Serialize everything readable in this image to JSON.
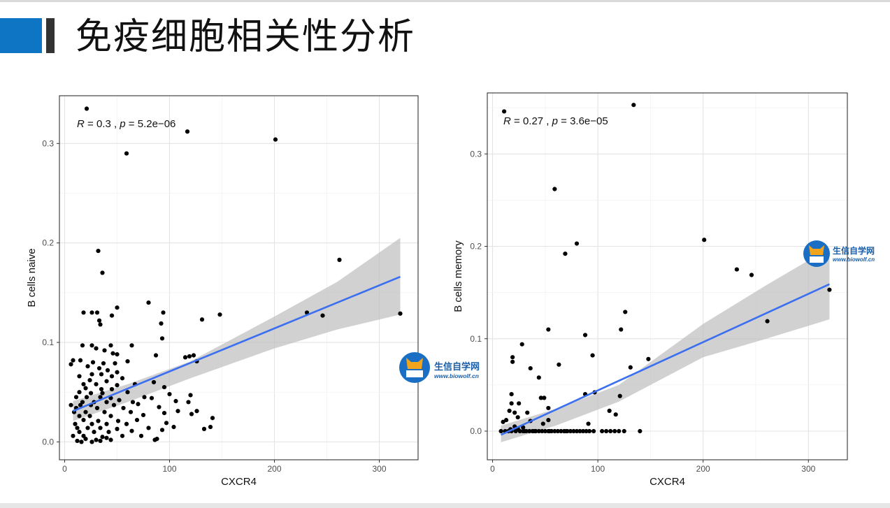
{
  "page": {
    "title": "免疫细胞相关性分析"
  },
  "watermark": {
    "name": "生信自学网",
    "url": "www.biowolf.cn"
  },
  "colors": {
    "accent_blue": "#0e74c4",
    "fit_line": "#3b6ff0",
    "ci_band": "#bdbdbd",
    "points": "#000000"
  },
  "chart_data": [
    {
      "type": "scatter",
      "xlabel": "CXCR4",
      "ylabel": "B cells naive",
      "annotation": {
        "r_label": "R",
        "r_value": " = 0.3 , ",
        "p_label": "p",
        "p_value": " = 5.2e−06"
      },
      "xlim": [
        -5,
        337
      ],
      "ylim": [
        -0.018,
        0.348
      ],
      "x_ticks": [
        0,
        100,
        200,
        300
      ],
      "x_tick_labels": [
        "0",
        "100",
        "200",
        "300"
      ],
      "y_ticks": [
        0.0,
        0.1,
        0.2,
        0.3
      ],
      "y_tick_labels": [
        "0.0",
        "0.1",
        "0.2",
        "0.3"
      ],
      "grid": true,
      "fit": {
        "x": [
          8,
          320
        ],
        "y": [
          0.031,
          0.166
        ]
      },
      "ci": {
        "x": [
          8,
          60,
          120,
          200,
          260,
          320
        ],
        "upper": [
          0.041,
          0.058,
          0.081,
          0.126,
          0.161,
          0.205
        ],
        "lower": [
          0.021,
          0.04,
          0.064,
          0.094,
          0.113,
          0.128
        ]
      },
      "points": [
        [
          21,
          0.335
        ],
        [
          117,
          0.312
        ],
        [
          201,
          0.304
        ],
        [
          59,
          0.29
        ],
        [
          32,
          0.192
        ],
        [
          262,
          0.183
        ],
        [
          36,
          0.17
        ],
        [
          80,
          0.14
        ],
        [
          50,
          0.135
        ],
        [
          18,
          0.13
        ],
        [
          26,
          0.13
        ],
        [
          31,
          0.13
        ],
        [
          94,
          0.13
        ],
        [
          231,
          0.13
        ],
        [
          320,
          0.129
        ],
        [
          148,
          0.128
        ],
        [
          45,
          0.127
        ],
        [
          246,
          0.127
        ],
        [
          33,
          0.122
        ],
        [
          131,
          0.123
        ],
        [
          34,
          0.118
        ],
        [
          92,
          0.119
        ],
        [
          93,
          0.104
        ],
        [
          17,
          0.097
        ],
        [
          26,
          0.097
        ],
        [
          44,
          0.097
        ],
        [
          64,
          0.097
        ],
        [
          30,
          0.094
        ],
        [
          38,
          0.092
        ],
        [
          46,
          0.089
        ],
        [
          50,
          0.088
        ],
        [
          87,
          0.087
        ],
        [
          119,
          0.086
        ],
        [
          123,
          0.087
        ],
        [
          115,
          0.085
        ],
        [
          8,
          0.082
        ],
        [
          15,
          0.082
        ],
        [
          27,
          0.08
        ],
        [
          37,
          0.079
        ],
        [
          48,
          0.079
        ],
        [
          126,
          0.081
        ],
        [
          60,
          0.081
        ],
        [
          6,
          0.078
        ],
        [
          22,
          0.076
        ],
        [
          33,
          0.074
        ],
        [
          41,
          0.072
        ],
        [
          50,
          0.07
        ],
        [
          26,
          0.068
        ],
        [
          35,
          0.068
        ],
        [
          45,
          0.066
        ],
        [
          14,
          0.066
        ],
        [
          55,
          0.064
        ],
        [
          24,
          0.062
        ],
        [
          40,
          0.061
        ],
        [
          85,
          0.06
        ],
        [
          18,
          0.058
        ],
        [
          30,
          0.058
        ],
        [
          50,
          0.057
        ],
        [
          67,
          0.058
        ],
        [
          20,
          0.054
        ],
        [
          35,
          0.053
        ],
        [
          45,
          0.053
        ],
        [
          95,
          0.055
        ],
        [
          14,
          0.05
        ],
        [
          25,
          0.049
        ],
        [
          36,
          0.049
        ],
        [
          60,
          0.05
        ],
        [
          100,
          0.048
        ],
        [
          120,
          0.047
        ],
        [
          11,
          0.045
        ],
        [
          21,
          0.045
        ],
        [
          34,
          0.045
        ],
        [
          44,
          0.044
        ],
        [
          76,
          0.045
        ],
        [
          52,
          0.042
        ],
        [
          83,
          0.044
        ],
        [
          17,
          0.04
        ],
        [
          28,
          0.04
        ],
        [
          40,
          0.04
        ],
        [
          65,
          0.04
        ],
        [
          106,
          0.041
        ],
        [
          6,
          0.037
        ],
        [
          15,
          0.037
        ],
        [
          25,
          0.037
        ],
        [
          47,
          0.037
        ],
        [
          70,
          0.038
        ],
        [
          118,
          0.04
        ],
        [
          11,
          0.034
        ],
        [
          31,
          0.034
        ],
        [
          56,
          0.034
        ],
        [
          90,
          0.035
        ],
        [
          9,
          0.03
        ],
        [
          20,
          0.03
        ],
        [
          38,
          0.03
        ],
        [
          63,
          0.03
        ],
        [
          108,
          0.031
        ],
        [
          126,
          0.031
        ],
        [
          14,
          0.026
        ],
        [
          24,
          0.026
        ],
        [
          44,
          0.026
        ],
        [
          75,
          0.027
        ],
        [
          95,
          0.029
        ],
        [
          121,
          0.028
        ],
        [
          18,
          0.022
        ],
        [
          32,
          0.021
        ],
        [
          51,
          0.021
        ],
        [
          69,
          0.022
        ],
        [
          141,
          0.024
        ],
        [
          10,
          0.018
        ],
        [
          26,
          0.018
        ],
        [
          40,
          0.018
        ],
        [
          59,
          0.018
        ],
        [
          97,
          0.019
        ],
        [
          12,
          0.014
        ],
        [
          22,
          0.014
        ],
        [
          34,
          0.014
        ],
        [
          50,
          0.013
        ],
        [
          80,
          0.014
        ],
        [
          104,
          0.015
        ],
        [
          133,
          0.013
        ],
        [
          139,
          0.015
        ],
        [
          14,
          0.01
        ],
        [
          28,
          0.01
        ],
        [
          42,
          0.01
        ],
        [
          64,
          0.011
        ],
        [
          93,
          0.012
        ],
        [
          8,
          0.006
        ],
        [
          18,
          0.006
        ],
        [
          36,
          0.005
        ],
        [
          55,
          0.006
        ],
        [
          73,
          0.006
        ],
        [
          20,
          0.003
        ],
        [
          30,
          0.002
        ],
        [
          44,
          0.002
        ],
        [
          16,
          0.0
        ],
        [
          26,
          0.0
        ],
        [
          12,
          0.001
        ],
        [
          34,
          0.001
        ],
        [
          86,
          0.002
        ],
        [
          40,
          0.004
        ],
        [
          88,
          0.003
        ]
      ]
    },
    {
      "type": "scatter",
      "xlabel": "CXCR4",
      "ylabel": "B cells memory",
      "annotation": {
        "r_label": "R",
        "r_value": " = 0.27 , ",
        "p_label": "p",
        "p_value": " = 3.6e−05"
      },
      "xlim": [
        -5,
        337
      ],
      "ylim": [
        -0.031,
        0.366
      ],
      "x_ticks": [
        0,
        100,
        200,
        300
      ],
      "x_tick_labels": [
        "0",
        "100",
        "200",
        "300"
      ],
      "y_ticks": [
        0.0,
        0.1,
        0.2,
        0.3
      ],
      "y_tick_labels": [
        "0.0",
        "0.1",
        "0.2",
        "0.3"
      ],
      "grid": true,
      "fit": {
        "x": [
          8,
          320
        ],
        "y": [
          -0.004,
          0.159
        ]
      },
      "ci": {
        "x": [
          8,
          60,
          120,
          200,
          260,
          320
        ],
        "upper": [
          0.006,
          0.024,
          0.05,
          0.116,
          0.158,
          0.198
        ],
        "lower": [
          -0.012,
          0.006,
          0.032,
          0.08,
          0.1,
          0.121
        ]
      },
      "points": [
        [
          11,
          0.346
        ],
        [
          134,
          0.353
        ],
        [
          59,
          0.262
        ],
        [
          80,
          0.203
        ],
        [
          69,
          0.192
        ],
        [
          201,
          0.207
        ],
        [
          232,
          0.175
        ],
        [
          246,
          0.169
        ],
        [
          126,
          0.129
        ],
        [
          122,
          0.11
        ],
        [
          53,
          0.11
        ],
        [
          261,
          0.119
        ],
        [
          320,
          0.153
        ],
        [
          88,
          0.104
        ],
        [
          95,
          0.082
        ],
        [
          28,
          0.094
        ],
        [
          19,
          0.08
        ],
        [
          19,
          0.075
        ],
        [
          63,
          0.072
        ],
        [
          131,
          0.069
        ],
        [
          148,
          0.078
        ],
        [
          36,
          0.068
        ],
        [
          44,
          0.058
        ],
        [
          18,
          0.04
        ],
        [
          46,
          0.036
        ],
        [
          49,
          0.036
        ],
        [
          88,
          0.04
        ],
        [
          97,
          0.042
        ],
        [
          121,
          0.038
        ],
        [
          18,
          0.03
        ],
        [
          25,
          0.03
        ],
        [
          53,
          0.025
        ],
        [
          111,
          0.022
        ],
        [
          16,
          0.022
        ],
        [
          21,
          0.02
        ],
        [
          33,
          0.02
        ],
        [
          117,
          0.018
        ],
        [
          13,
          0.012
        ],
        [
          24,
          0.015
        ],
        [
          53,
          0.012
        ],
        [
          36,
          0.011
        ],
        [
          48,
          0.008
        ],
        [
          91,
          0.008
        ],
        [
          10,
          0.01
        ],
        [
          21,
          0.005
        ],
        [
          29,
          0.004
        ],
        [
          24,
          0.003
        ],
        [
          17,
          0.002
        ],
        [
          8,
          0.0
        ],
        [
          12,
          0.0
        ],
        [
          15,
          0.0
        ],
        [
          18,
          0.0
        ],
        [
          22,
          0.0
        ],
        [
          26,
          0.0
        ],
        [
          29,
          0.0
        ],
        [
          32,
          0.0
        ],
        [
          35,
          0.0
        ],
        [
          38,
          0.0
        ],
        [
          41,
          0.0
        ],
        [
          44,
          0.0
        ],
        [
          47,
          0.0
        ],
        [
          50,
          0.0
        ],
        [
          53,
          0.0
        ],
        [
          56,
          0.0
        ],
        [
          59,
          0.0
        ],
        [
          62,
          0.0
        ],
        [
          65,
          0.0
        ],
        [
          68,
          0.0
        ],
        [
          71,
          0.0
        ],
        [
          74,
          0.0
        ],
        [
          77,
          0.0
        ],
        [
          80,
          0.0
        ],
        [
          83,
          0.0
        ],
        [
          86,
          0.0
        ],
        [
          89,
          0.0
        ],
        [
          92,
          0.0
        ],
        [
          96,
          0.0
        ],
        [
          104,
          0.0
        ],
        [
          108,
          0.0
        ],
        [
          112,
          0.0
        ],
        [
          116,
          0.0
        ],
        [
          120,
          0.0
        ],
        [
          125,
          0.0
        ],
        [
          140,
          0.0
        ],
        [
          30,
          0.0
        ],
        [
          40,
          0.0
        ],
        [
          54,
          0.0
        ],
        [
          70,
          0.0
        ]
      ]
    }
  ]
}
